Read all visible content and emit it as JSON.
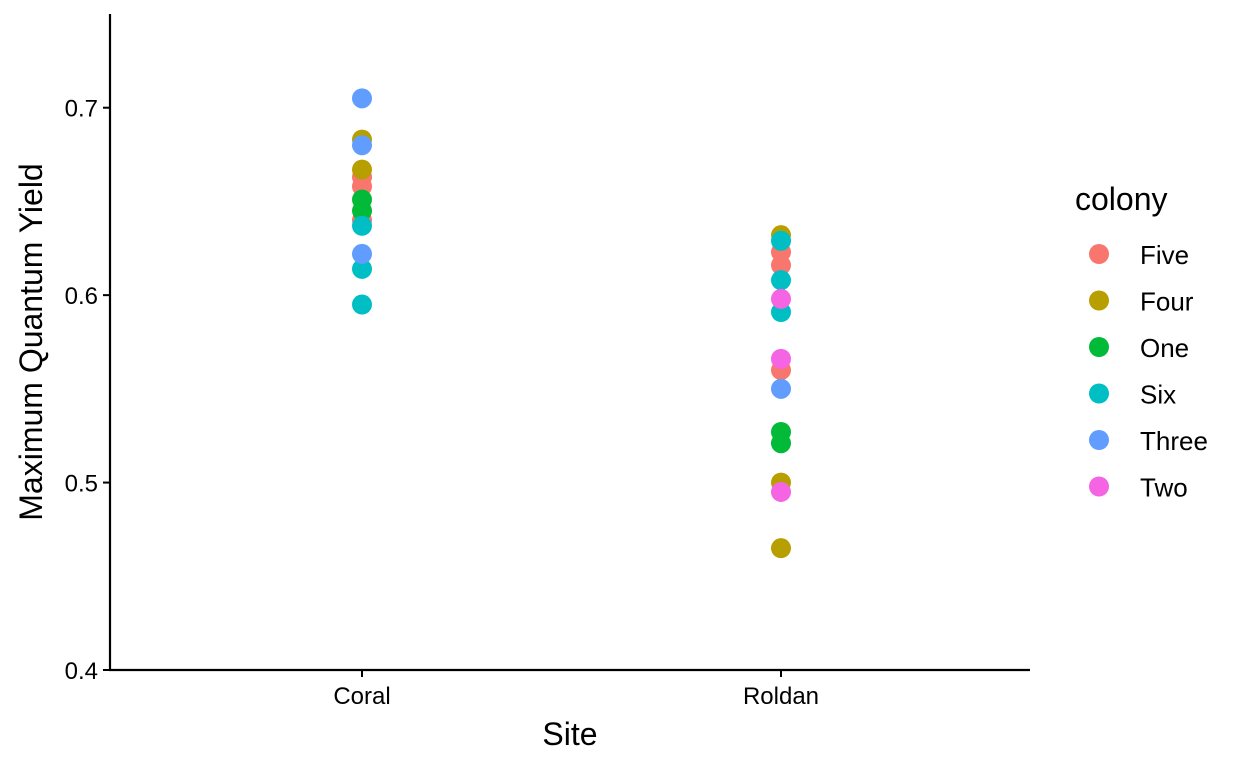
{
  "chart_data": {
    "type": "scatter",
    "title": "",
    "xlabel": "Site",
    "ylabel": "Maximum Quantum Yield",
    "categories": [
      "Coral",
      "Roldan"
    ],
    "ylim": [
      0.4,
      0.75
    ],
    "yticks": [
      0.4,
      0.5,
      0.6,
      0.7
    ],
    "ytick_labels": [
      "0.4",
      "0.5",
      "0.6",
      "0.7"
    ],
    "grid": false,
    "legend": {
      "title": "colony",
      "placement": "right",
      "entries": [
        "Five",
        "Four",
        "One",
        "Six",
        "Three",
        "Two"
      ]
    },
    "series": [
      {
        "name": "Five",
        "color": "#F8766D",
        "points": [
          {
            "x": "Coral",
            "y": 0.663
          },
          {
            "x": "Coral",
            "y": 0.658
          },
          {
            "x": "Coral",
            "y": 0.64
          },
          {
            "x": "Roldan",
            "y": 0.623
          },
          {
            "x": "Roldan",
            "y": 0.616
          },
          {
            "x": "Roldan",
            "y": 0.56
          }
        ]
      },
      {
        "name": "Four",
        "color": "#B79F00",
        "points": [
          {
            "x": "Coral",
            "y": 0.683
          },
          {
            "x": "Coral",
            "y": 0.667
          },
          {
            "x": "Roldan",
            "y": 0.632
          },
          {
            "x": "Roldan",
            "y": 0.5
          },
          {
            "x": "Roldan",
            "y": 0.465
          }
        ]
      },
      {
        "name": "One",
        "color": "#00BA38",
        "points": [
          {
            "x": "Coral",
            "y": 0.651
          },
          {
            "x": "Coral",
            "y": 0.645
          },
          {
            "x": "Roldan",
            "y": 0.527
          },
          {
            "x": "Roldan",
            "y": 0.521
          }
        ]
      },
      {
        "name": "Six",
        "color": "#00BFC4",
        "points": [
          {
            "x": "Coral",
            "y": 0.637
          },
          {
            "x": "Coral",
            "y": 0.614
          },
          {
            "x": "Coral",
            "y": 0.595
          },
          {
            "x": "Roldan",
            "y": 0.629
          },
          {
            "x": "Roldan",
            "y": 0.608
          },
          {
            "x": "Roldan",
            "y": 0.591
          }
        ]
      },
      {
        "name": "Three",
        "color": "#619CFF",
        "points": [
          {
            "x": "Coral",
            "y": 0.705
          },
          {
            "x": "Coral",
            "y": 0.68
          },
          {
            "x": "Coral",
            "y": 0.622
          },
          {
            "x": "Roldan",
            "y": 0.55
          }
        ]
      },
      {
        "name": "Two",
        "color": "#F564E3",
        "points": [
          {
            "x": "Roldan",
            "y": 0.598
          },
          {
            "x": "Roldan",
            "y": 0.566
          },
          {
            "x": "Roldan",
            "y": 0.495
          }
        ]
      }
    ]
  }
}
